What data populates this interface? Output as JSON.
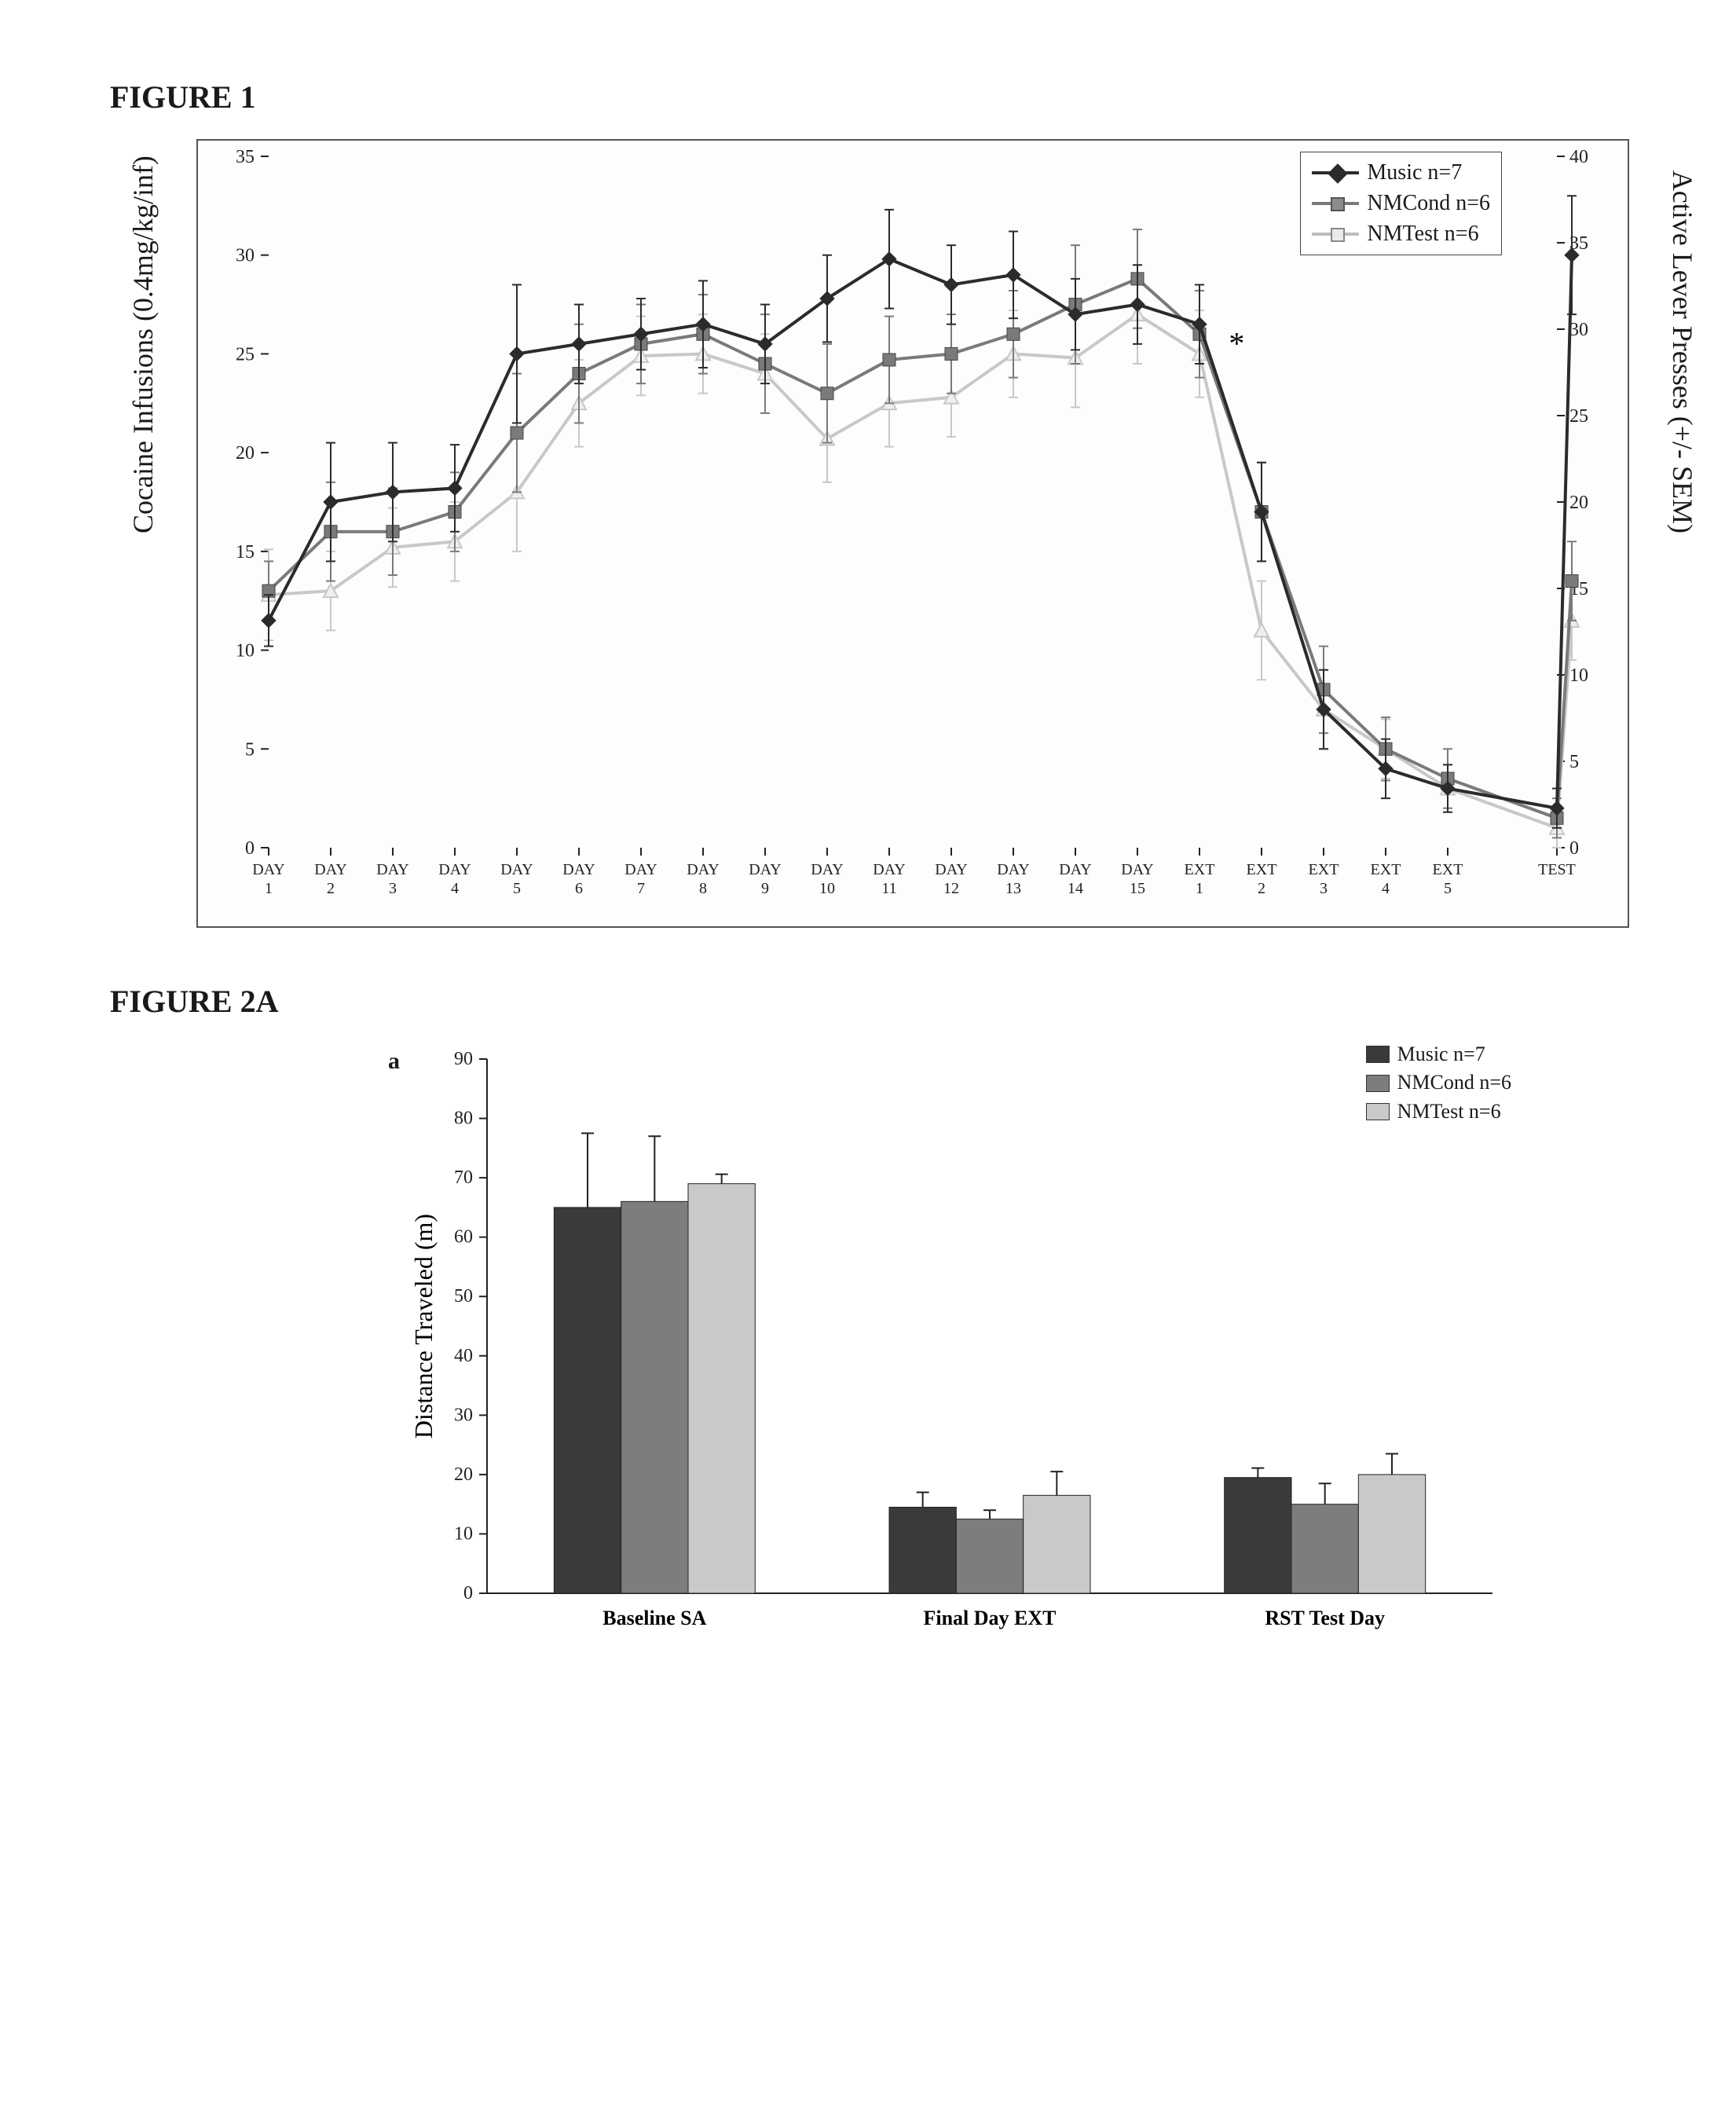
{
  "figure1": {
    "label": "FIGURE 1",
    "type": "line",
    "left_axis": {
      "label": "Cocaine Infusions (0.4mg/kg/inf)",
      "min": 0,
      "max": 35,
      "step": 5,
      "label_fontsize": 36,
      "tick_fontsize": 24
    },
    "right_axis": {
      "label": "Active Lever Presses (+/- SEM)",
      "min": 0,
      "max": 40,
      "step": 5,
      "label_fontsize": 36,
      "tick_fontsize": 24
    },
    "x_labels_top": [
      "DAY",
      "DAY",
      "DAY",
      "DAY",
      "DAY",
      "DAY",
      "DAY",
      "DAY",
      "DAY",
      "DAY",
      "DAY",
      "DAY",
      "DAY",
      "DAY",
      "DAY",
      "EXT",
      "EXT",
      "EXT",
      "EXT",
      "EXT",
      "TEST"
    ],
    "x_labels_bot": [
      "1",
      "2",
      "3",
      "4",
      "5",
      "6",
      "7",
      "8",
      "9",
      "10",
      "11",
      "12",
      "13",
      "14",
      "15",
      "1",
      "2",
      "3",
      "4",
      "5",
      ""
    ],
    "legend": [
      {
        "label": "Music n=7",
        "color": "#2b2b2b",
        "marker": "diamond"
      },
      {
        "label": "NMCond n=6",
        "color": "#7a7a7a",
        "marker": "square"
      },
      {
        "label": "NMTest n=6",
        "color": "#c8c8c8",
        "marker": "triangle"
      }
    ],
    "series": {
      "Music": {
        "color": "#2b2b2b",
        "marker": "diamond",
        "line_width": 4,
        "y": [
          11.5,
          17.5,
          18,
          18.2,
          25,
          25.5,
          26,
          26.5,
          25.5,
          27.8,
          29.8,
          28.5,
          29,
          27,
          27.5,
          26.5,
          17,
          7,
          4,
          3,
          2,
          30
        ],
        "err": [
          1.3,
          3,
          2.5,
          2.2,
          3.5,
          2,
          1.8,
          2.2,
          2,
          2.2,
          2.5,
          2,
          2.2,
          1.8,
          2,
          2,
          2.5,
          2,
          1.5,
          1.2,
          1,
          3
        ]
      },
      "NMCond": {
        "color": "#7a7a7a",
        "marker": "square",
        "line_width": 4,
        "y": [
          13,
          16,
          16,
          17,
          21,
          24,
          25.5,
          26,
          24.5,
          23,
          24.7,
          25,
          26,
          27.5,
          28.8,
          26,
          17,
          8,
          5,
          3.5,
          1.5,
          13.5
        ],
        "err": [
          1.5,
          2.5,
          2.2,
          2,
          3,
          2.5,
          2,
          2,
          2.5,
          2.5,
          2.2,
          2,
          2.2,
          3,
          2.5,
          2.2,
          2.5,
          2.2,
          1.6,
          1.5,
          1,
          2
        ]
      },
      "NMTest": {
        "color": "#c8c8c8",
        "marker": "triangle",
        "line_width": 4,
        "y": [
          12.8,
          13,
          15.2,
          15.5,
          18,
          22.5,
          24.9,
          25,
          24,
          20.7,
          22.5,
          22.8,
          25,
          24.8,
          27,
          25,
          11,
          7,
          5,
          3,
          1,
          11.5
        ],
        "err": [
          2.3,
          2,
          2,
          2,
          3,
          2.2,
          2,
          2,
          2,
          2.2,
          2.2,
          2,
          2.2,
          2.5,
          2.5,
          2.2,
          2.5,
          2,
          1.5,
          1.2,
          1,
          2
        ]
      }
    },
    "annotations": [
      {
        "text": "*",
        "x_index": 15.6,
        "y": 25,
        "fontsize": 40
      },
      {
        "text": "***",
        "x_index": 20.3,
        "y": 35.5,
        "fontsize": 40
      }
    ],
    "background_color": "#fdfdfd",
    "border_color": "#555555"
  },
  "figure2a": {
    "label": "FIGURE 2A",
    "panel_letter": "a",
    "type": "bar",
    "y_axis": {
      "label": "Distance Traveled (m)",
      "min": 0,
      "max": 90,
      "step": 10,
      "label_fontsize": 32,
      "tick_fontsize": 22
    },
    "groups": [
      "Baseline SA",
      "Final Day EXT",
      "RST Test Day"
    ],
    "legend": [
      {
        "label": "Music n=7",
        "color": "#3a3a3a"
      },
      {
        "label": "NMCond n=6",
        "color": "#7d7d7d"
      },
      {
        "label": "NMTest n=6",
        "color": "#c9c9c9"
      }
    ],
    "data": {
      "Music": {
        "color": "#3a3a3a",
        "y": [
          65,
          14.5,
          19.5
        ],
        "err": [
          12.5,
          2.5,
          1.6
        ]
      },
      "NMCond": {
        "color": "#7d7d7d",
        "y": [
          66,
          12.5,
          15
        ],
        "err": [
          11,
          1.5,
          3.5
        ]
      },
      "NMTest": {
        "color": "#c9c9c9",
        "y": [
          69,
          16.5,
          20
        ],
        "err": [
          1.6,
          4,
          3.5
        ]
      }
    },
    "bar_width": 0.28,
    "group_label_fontsize": 26,
    "background_color": "#fdfdfd"
  }
}
